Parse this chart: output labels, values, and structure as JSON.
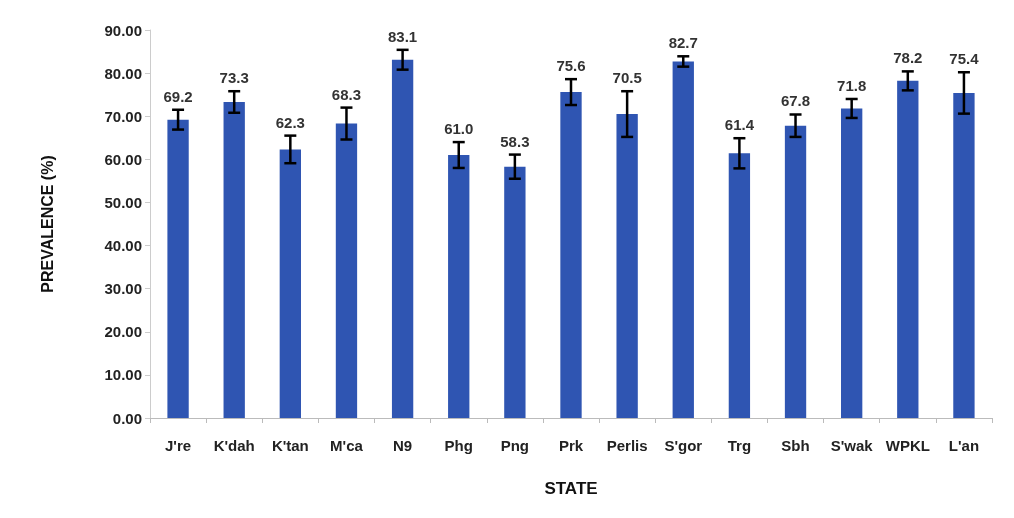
{
  "chart_data": {
    "type": "bar",
    "xlabel": "STATE",
    "ylabel": "PREVALENCE (%)",
    "categories": [
      "J're",
      "K'dah",
      "K'tan",
      "M'ca",
      "N9",
      "Phg",
      "Png",
      "Prk",
      "Perlis",
      "S'gor",
      "Trg",
      "Sbh",
      "S'wak",
      "WPKL",
      "L'an"
    ],
    "values": [
      69.2,
      73.3,
      62.3,
      68.3,
      83.1,
      61.0,
      58.3,
      75.6,
      70.5,
      82.7,
      61.4,
      67.8,
      71.8,
      78.2,
      75.4
    ],
    "value_labels": [
      "69.2",
      "73.3",
      "62.3",
      "68.3",
      "83.1",
      "61.0",
      "58.3",
      "75.6",
      "70.5",
      "82.7",
      "61.4",
      "67.8",
      "71.8",
      "78.2",
      "75.4"
    ],
    "errors": [
      2.3,
      2.5,
      3.2,
      3.7,
      2.3,
      3.0,
      2.8,
      3.0,
      5.3,
      1.2,
      3.5,
      2.6,
      2.2,
      2.2,
      4.8
    ],
    "color": "#2f55b2",
    "ylim": [
      0,
      90
    ],
    "yticks": [
      {
        "value": 0,
        "label": "0.00"
      },
      {
        "value": 10,
        "label": "10.00"
      },
      {
        "value": 20,
        "label": "20.00"
      },
      {
        "value": 30,
        "label": "30.00"
      },
      {
        "value": 40,
        "label": "40.00"
      },
      {
        "value": 50,
        "label": "50.00"
      },
      {
        "value": 60,
        "label": "60.00"
      },
      {
        "value": 70,
        "label": "70.00"
      },
      {
        "value": 80,
        "label": "80.00"
      },
      {
        "value": 90,
        "label": "90.00"
      }
    ],
    "grid": false
  }
}
